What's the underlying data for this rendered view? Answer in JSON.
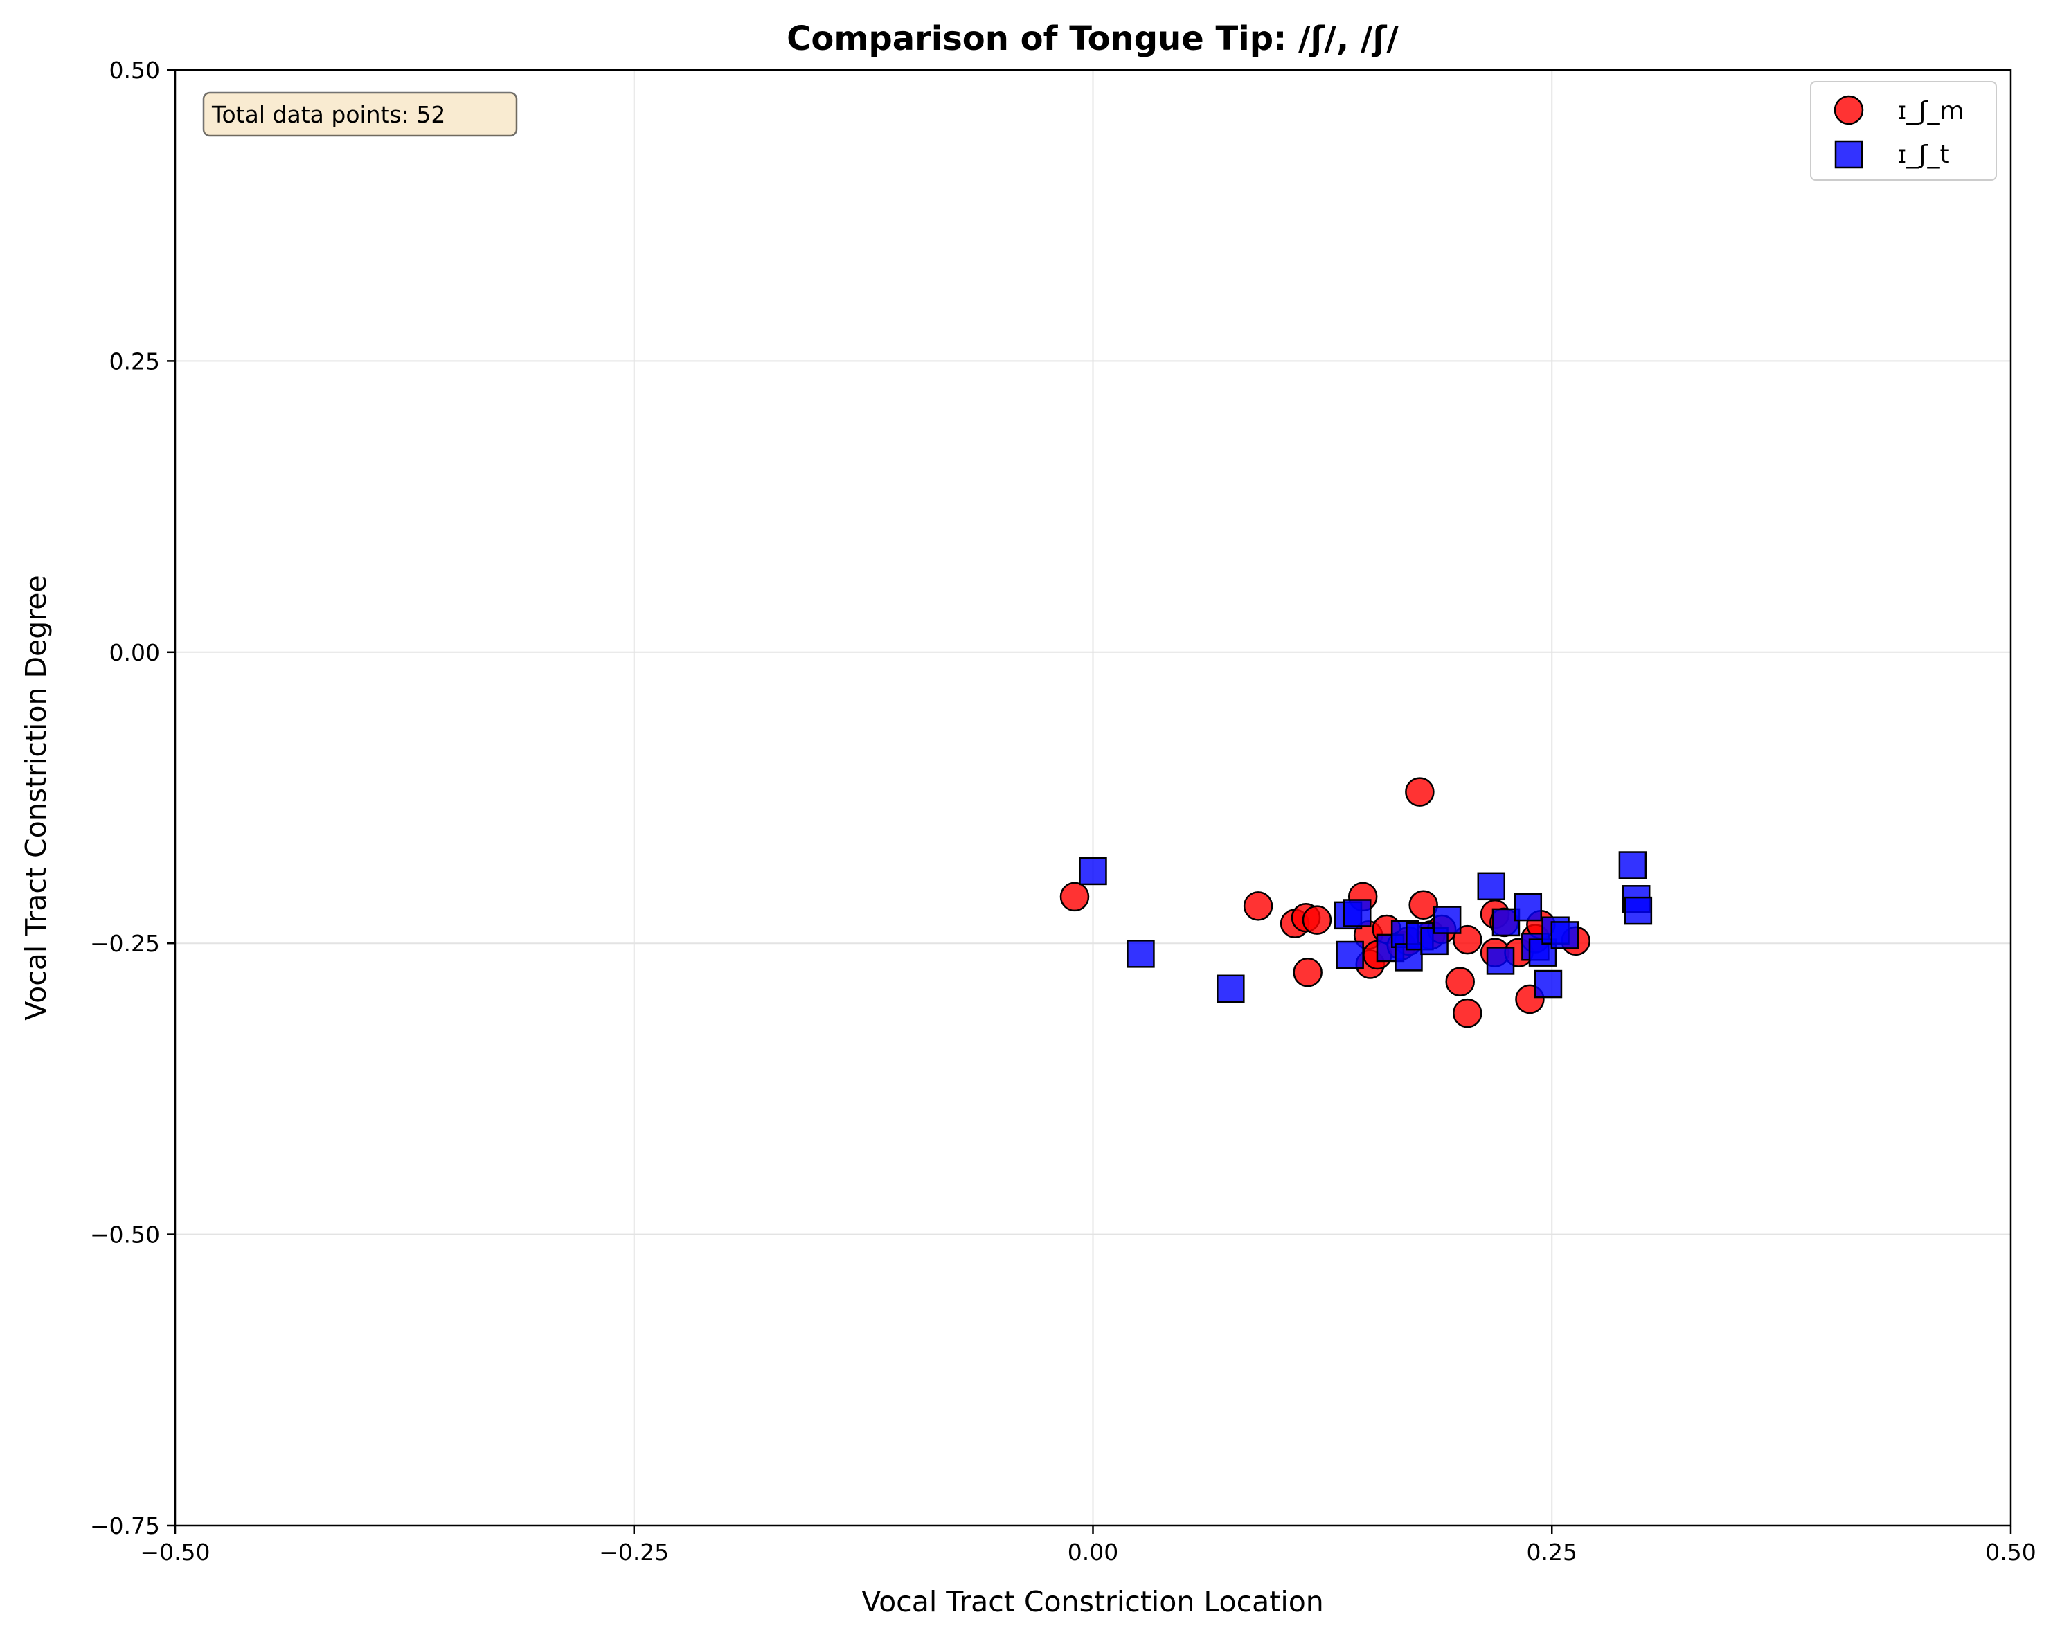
{
  "chart_data": {
    "type": "scatter",
    "title": "Comparison of Tongue Tip: /ʃ/, /ʃ/",
    "xlabel": "Vocal Tract Constriction Location",
    "ylabel": "Vocal Tract Constriction Degree",
    "xlim": [
      -0.5,
      0.5
    ],
    "ylim": [
      -0.75,
      0.5
    ],
    "xticks": [
      -0.5,
      -0.25,
      0.0,
      0.25,
      0.5
    ],
    "yticks": [
      -0.75,
      -0.5,
      -0.25,
      0.0,
      0.25,
      0.5
    ],
    "xtick_labels": [
      "−0.50",
      "−0.25",
      "0.00",
      "0.25",
      "0.50"
    ],
    "ytick_labels": [
      "−0.75",
      "−0.50",
      "−0.25",
      "0.00",
      "0.25",
      "0.50"
    ],
    "grid": true,
    "legend_position": "top-right",
    "annotation": "Total data points: 52",
    "series": [
      {
        "name": "ɪ_ʃ_m",
        "marker": "circle",
        "color": "#ff0000",
        "points": [
          [
            -0.01,
            -0.21
          ],
          [
            0.09,
            -0.218
          ],
          [
            0.11,
            -0.233
          ],
          [
            0.116,
            -0.228
          ],
          [
            0.122,
            -0.23
          ],
          [
            0.117,
            -0.275
          ],
          [
            0.147,
            -0.21
          ],
          [
            0.15,
            -0.243
          ],
          [
            0.151,
            -0.268
          ],
          [
            0.155,
            -0.26
          ],
          [
            0.16,
            -0.238
          ],
          [
            0.168,
            -0.252
          ],
          [
            0.172,
            -0.248
          ],
          [
            0.178,
            -0.12
          ],
          [
            0.18,
            -0.217
          ],
          [
            0.184,
            -0.243
          ],
          [
            0.19,
            -0.238
          ],
          [
            0.2,
            -0.283
          ],
          [
            0.204,
            -0.31
          ],
          [
            0.204,
            -0.247
          ],
          [
            0.219,
            -0.225
          ],
          [
            0.219,
            -0.258
          ],
          [
            0.224,
            -0.232
          ],
          [
            0.232,
            -0.258
          ],
          [
            0.238,
            -0.298
          ],
          [
            0.241,
            -0.246
          ],
          [
            0.244,
            -0.234
          ],
          [
            0.263,
            -0.248
          ]
        ]
      },
      {
        "name": "ɪ_ʃ_t",
        "marker": "square",
        "color": "#0000ff",
        "points": [
          [
            0.0,
            -0.188
          ],
          [
            0.026,
            -0.259
          ],
          [
            0.075,
            -0.289
          ],
          [
            0.139,
            -0.226
          ],
          [
            0.14,
            -0.26
          ],
          [
            0.144,
            -0.224
          ],
          [
            0.162,
            -0.254
          ],
          [
            0.17,
            -0.242
          ],
          [
            0.172,
            -0.262
          ],
          [
            0.178,
            -0.244
          ],
          [
            0.186,
            -0.248
          ],
          [
            0.193,
            -0.23
          ],
          [
            0.217,
            -0.201
          ],
          [
            0.222,
            -0.265
          ],
          [
            0.225,
            -0.232
          ],
          [
            0.237,
            -0.219
          ],
          [
            0.241,
            -0.253
          ],
          [
            0.245,
            -0.258
          ],
          [
            0.248,
            -0.285
          ],
          [
            0.252,
            -0.239
          ],
          [
            0.257,
            -0.243
          ],
          [
            0.294,
            -0.183
          ],
          [
            0.296,
            -0.212
          ],
          [
            0.297,
            -0.222
          ]
        ]
      }
    ]
  }
}
